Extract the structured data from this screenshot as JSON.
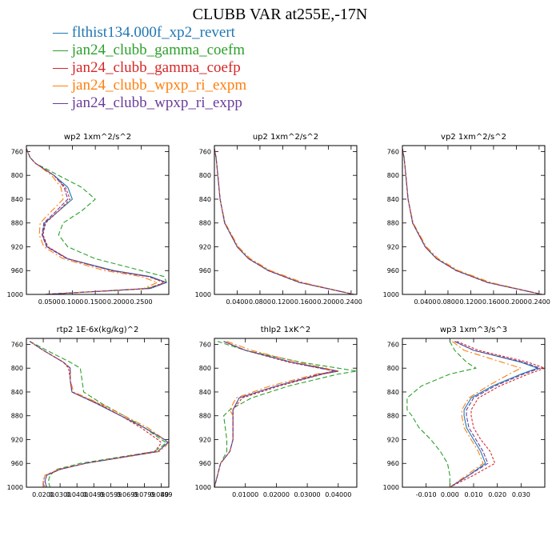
{
  "figure": {
    "title": "CLUBB VAR at255E,-17N"
  },
  "legend": [
    {
      "label": "flthist134.000f_xp2_revert",
      "color": "#1f77b4"
    },
    {
      "label": "jan24_clubb_gamma_coefm",
      "color": "#2ca02c"
    },
    {
      "label": "jan24_clubb_gamma_coefp",
      "color": "#d62728"
    },
    {
      "label": "jan24_clubb_wpxp_ri_expm",
      "color": "#ff7f0e"
    },
    {
      "label": "jan24_clubb_wpxp_ri_expp",
      "color": "#6a3d9a"
    }
  ],
  "chart_data": [
    {
      "type": "line",
      "title": "wp2   1xm^2/s^2",
      "xlim": [
        0.0,
        0.31
      ],
      "ylim": [
        1000,
        750
      ],
      "xticks": [
        0.05,
        0.1,
        0.15,
        0.2,
        0.25
      ],
      "xticklabels": [
        "0.0500",
        "0.1000",
        "0.1500",
        "0.2000",
        "0.2500"
      ],
      "yticks": [
        760,
        800,
        840,
        880,
        920,
        960,
        1000
      ],
      "y": [
        755,
        770,
        780,
        800,
        820,
        840,
        860,
        880,
        900,
        920,
        940,
        960,
        970,
        980,
        990,
        1000
      ],
      "series": [
        {
          "name": "flthist134.000f_xp2_revert",
          "values": [
            0.0,
            0.008,
            0.02,
            0.06,
            0.09,
            0.1,
            0.07,
            0.04,
            0.035,
            0.045,
            0.09,
            0.19,
            0.27,
            0.305,
            0.27,
            0.04
          ]
        },
        {
          "name": "jan24_clubb_gamma_coefm",
          "values": [
            0.0,
            0.008,
            0.02,
            0.07,
            0.12,
            0.15,
            0.12,
            0.08,
            0.07,
            0.09,
            0.15,
            0.25,
            0.3,
            0.305,
            0.26,
            0.04
          ]
        },
        {
          "name": "jan24_clubb_gamma_coefp",
          "values": [
            0.0,
            0.008,
            0.02,
            0.06,
            0.085,
            0.095,
            0.07,
            0.042,
            0.036,
            0.047,
            0.09,
            0.185,
            0.265,
            0.3,
            0.265,
            0.04
          ]
        },
        {
          "name": "jan24_clubb_wpxp_ri_expm",
          "values": [
            0.0,
            0.008,
            0.02,
            0.055,
            0.075,
            0.08,
            0.055,
            0.03,
            0.028,
            0.038,
            0.08,
            0.17,
            0.25,
            0.285,
            0.255,
            0.04
          ]
        },
        {
          "name": "jan24_clubb_wpxp_ri_expp",
          "values": [
            0.0,
            0.008,
            0.02,
            0.06,
            0.082,
            0.09,
            0.065,
            0.038,
            0.034,
            0.044,
            0.088,
            0.185,
            0.265,
            0.305,
            0.268,
            0.04
          ]
        }
      ]
    },
    {
      "type": "line",
      "title": "up2   1xm^2/s^2",
      "xlim": [
        0.0,
        0.25
      ],
      "ylim": [
        1000,
        750
      ],
      "xticks": [
        0.04,
        0.08,
        0.12,
        0.16,
        0.2,
        0.24
      ],
      "xticklabels": [
        "0.0400",
        "0.0800",
        "0.1200",
        "0.1600",
        "0.2000",
        "0.2400"
      ],
      "yticks": [
        760,
        800,
        840,
        880,
        920,
        960,
        1000
      ],
      "y": [
        755,
        770,
        800,
        840,
        880,
        920,
        940,
        960,
        980,
        1000
      ],
      "series": [
        {
          "name": "flthist134.000f_xp2_revert",
          "values": [
            0.0,
            0.003,
            0.006,
            0.01,
            0.018,
            0.04,
            0.06,
            0.095,
            0.15,
            0.245
          ]
        },
        {
          "name": "jan24_clubb_gamma_coefm",
          "values": [
            0.0,
            0.003,
            0.006,
            0.01,
            0.018,
            0.04,
            0.06,
            0.095,
            0.15,
            0.245
          ]
        },
        {
          "name": "jan24_clubb_gamma_coefp",
          "values": [
            0.0,
            0.003,
            0.006,
            0.01,
            0.018,
            0.04,
            0.06,
            0.095,
            0.15,
            0.245
          ]
        },
        {
          "name": "jan24_clubb_wpxp_ri_expm",
          "values": [
            0.0,
            0.003,
            0.006,
            0.01,
            0.019,
            0.042,
            0.063,
            0.098,
            0.155,
            0.245
          ]
        },
        {
          "name": "jan24_clubb_wpxp_ri_expp",
          "values": [
            0.0,
            0.003,
            0.006,
            0.01,
            0.018,
            0.04,
            0.06,
            0.094,
            0.149,
            0.245
          ]
        }
      ]
    },
    {
      "type": "line",
      "title": "vp2   1xm^2/s^2",
      "xlim": [
        0.0,
        0.25
      ],
      "ylim": [
        1000,
        750
      ],
      "xticks": [
        0.04,
        0.08,
        0.12,
        0.16,
        0.2,
        0.24
      ],
      "xticklabels": [
        "0.0400",
        "0.0800",
        "0.1200",
        "0.1600",
        "0.2000",
        "0.2400"
      ],
      "yticks": [
        760,
        800,
        840,
        880,
        920,
        960,
        1000
      ],
      "y": [
        755,
        770,
        800,
        840,
        880,
        920,
        940,
        960,
        980,
        1000
      ],
      "series": [
        {
          "name": "flthist134.000f_xp2_revert",
          "values": [
            0.0,
            0.003,
            0.006,
            0.01,
            0.018,
            0.04,
            0.06,
            0.095,
            0.15,
            0.245
          ]
        },
        {
          "name": "jan24_clubb_gamma_coefm",
          "values": [
            0.0,
            0.003,
            0.006,
            0.01,
            0.018,
            0.04,
            0.06,
            0.095,
            0.15,
            0.245
          ]
        },
        {
          "name": "jan24_clubb_gamma_coefp",
          "values": [
            0.0,
            0.003,
            0.006,
            0.01,
            0.018,
            0.04,
            0.06,
            0.095,
            0.15,
            0.245
          ]
        },
        {
          "name": "jan24_clubb_wpxp_ri_expm",
          "values": [
            0.0,
            0.003,
            0.006,
            0.01,
            0.019,
            0.042,
            0.063,
            0.098,
            0.155,
            0.245
          ]
        },
        {
          "name": "jan24_clubb_wpxp_ri_expp",
          "values": [
            0.0,
            0.003,
            0.006,
            0.01,
            0.018,
            0.04,
            0.06,
            0.094,
            0.149,
            0.245
          ]
        }
      ]
    },
    {
      "type": "line",
      "title": "rtp2   1E-6x(kg/kg)^2",
      "xlim": [
        0.01,
        0.0945
      ],
      "ylim": [
        1000,
        750
      ],
      "xticks": [
        0.02,
        0.03,
        0.04,
        0.05,
        0.06,
        0.07,
        0.08,
        0.09
      ],
      "xticklabels": [
        "0.0200",
        "0.0300",
        "0.0400",
        "0.0499",
        "0.0599",
        "0.0699",
        "0.0799",
        "0.0899"
      ],
      "xticklabel_tail": "40",
      "yticks": [
        760,
        800,
        840,
        880,
        920,
        960,
        1000
      ],
      "y": [
        755,
        770,
        790,
        800,
        820,
        840,
        860,
        880,
        900,
        920,
        925,
        930,
        940,
        960,
        970,
        980,
        990,
        1000
      ],
      "series": [
        {
          "name": "flthist134.000f_xp2_revert",
          "values": [
            0.012,
            0.02,
            0.032,
            0.036,
            0.036,
            0.037,
            0.052,
            0.066,
            0.08,
            0.092,
            0.094,
            0.092,
            0.088,
            0.045,
            0.03,
            0.022,
            0.021,
            0.022
          ]
        },
        {
          "name": "jan24_clubb_gamma_coefm",
          "values": [
            0.012,
            0.022,
            0.036,
            0.042,
            0.043,
            0.044,
            0.055,
            0.068,
            0.08,
            0.09,
            0.093,
            0.091,
            0.086,
            0.042,
            0.028,
            0.024,
            0.023,
            0.024
          ]
        },
        {
          "name": "jan24_clubb_gamma_coefp",
          "values": [
            0.012,
            0.02,
            0.032,
            0.035,
            0.036,
            0.037,
            0.053,
            0.066,
            0.078,
            0.088,
            0.09,
            0.089,
            0.086,
            0.045,
            0.03,
            0.021,
            0.02,
            0.02
          ]
        },
        {
          "name": "jan24_clubb_wpxp_ri_expm",
          "values": [
            0.012,
            0.02,
            0.032,
            0.036,
            0.036,
            0.038,
            0.054,
            0.068,
            0.082,
            0.092,
            0.094,
            0.093,
            0.089,
            0.045,
            0.029,
            0.021,
            0.02,
            0.021
          ]
        },
        {
          "name": "jan24_clubb_wpxp_ri_expp",
          "values": [
            0.012,
            0.02,
            0.032,
            0.036,
            0.036,
            0.037,
            0.052,
            0.066,
            0.08,
            0.092,
            0.094,
            0.092,
            0.088,
            0.045,
            0.03,
            0.022,
            0.021,
            0.022
          ]
        }
      ]
    },
    {
      "type": "line",
      "title": "thlp2   1xK^2",
      "xlim": [
        0.0,
        0.046
      ],
      "ylim": [
        1000,
        750
      ],
      "xticks": [
        0.01,
        0.02,
        0.03,
        0.04
      ],
      "xticklabels": [
        "0.01000",
        "0.02000",
        "0.03000",
        "0.04000"
      ],
      "yticks": [
        760,
        800,
        840,
        880,
        920,
        960,
        1000
      ],
      "y": [
        755,
        770,
        790,
        800,
        805,
        810,
        830,
        850,
        870,
        880,
        920,
        940,
        960,
        980,
        1000
      ],
      "series": [
        {
          "name": "flthist134.000f_xp2_revert",
          "values": [
            0.003,
            0.01,
            0.025,
            0.035,
            0.04,
            0.035,
            0.02,
            0.008,
            0.006,
            0.006,
            0.006,
            0.005,
            0.002,
            0.001,
            0.0
          ]
        },
        {
          "name": "jan24_clubb_gamma_coefm",
          "values": [
            0.001,
            0.01,
            0.028,
            0.04,
            0.046,
            0.04,
            0.024,
            0.012,
            0.005,
            0.003,
            0.004,
            0.004,
            0.002,
            0.001,
            0.0
          ]
        },
        {
          "name": "jan24_clubb_gamma_coefp",
          "values": [
            0.003,
            0.01,
            0.024,
            0.034,
            0.04,
            0.035,
            0.021,
            0.009,
            0.006,
            0.006,
            0.006,
            0.005,
            0.002,
            0.001,
            0.0
          ]
        },
        {
          "name": "jan24_clubb_wpxp_ri_expm",
          "values": [
            0.004,
            0.012,
            0.027,
            0.036,
            0.039,
            0.033,
            0.018,
            0.007,
            0.005,
            0.006,
            0.006,
            0.005,
            0.002,
            0.001,
            0.0
          ]
        },
        {
          "name": "jan24_clubb_wpxp_ri_expp",
          "values": [
            0.003,
            0.01,
            0.025,
            0.034,
            0.039,
            0.034,
            0.02,
            0.008,
            0.006,
            0.006,
            0.006,
            0.005,
            0.002,
            0.001,
            0.0
          ]
        }
      ]
    },
    {
      "type": "line",
      "title": "wp3   1xm^3/s^3",
      "xlim": [
        -0.02,
        0.04
      ],
      "ylim": [
        1000,
        750
      ],
      "xticks": [
        -0.01,
        0.0,
        0.01,
        0.02,
        0.03
      ],
      "xticklabels": [
        "-0.010",
        "0.000",
        "0.010",
        "0.020",
        "0.030"
      ],
      "yticks": [
        760,
        800,
        840,
        880,
        920,
        960,
        1000
      ],
      "y": [
        755,
        770,
        790,
        800,
        810,
        830,
        850,
        870,
        880,
        900,
        920,
        940,
        960,
        980,
        1000
      ],
      "series": [
        {
          "name": "flthist134.000f_xp2_revert",
          "values": [
            0.002,
            0.01,
            0.03,
            0.037,
            0.03,
            0.018,
            0.009,
            0.006,
            0.006,
            0.007,
            0.01,
            0.013,
            0.015,
            0.008,
            0.0
          ]
        },
        {
          "name": "jan24_clubb_gamma_coefm",
          "values": [
            0.0,
            0.002,
            0.007,
            0.011,
            0.0,
            -0.012,
            -0.018,
            -0.018,
            -0.016,
            -0.013,
            -0.008,
            -0.004,
            -0.001,
            0.0,
            0.0
          ]
        },
        {
          "name": "jan24_clubb_gamma_coefp",
          "values": [
            0.003,
            0.012,
            0.033,
            0.04,
            0.033,
            0.021,
            0.012,
            0.009,
            0.009,
            0.01,
            0.013,
            0.017,
            0.019,
            0.01,
            0.0
          ]
        },
        {
          "name": "jan24_clubb_wpxp_ri_expm",
          "values": [
            0.001,
            0.006,
            0.022,
            0.03,
            0.025,
            0.016,
            0.008,
            0.005,
            0.005,
            0.006,
            0.009,
            0.012,
            0.014,
            0.007,
            0.0
          ]
        },
        {
          "name": "jan24_clubb_wpxp_ri_expp",
          "values": [
            0.002,
            0.01,
            0.031,
            0.038,
            0.031,
            0.019,
            0.01,
            0.007,
            0.007,
            0.008,
            0.011,
            0.014,
            0.016,
            0.008,
            0.0
          ]
        }
      ]
    }
  ]
}
